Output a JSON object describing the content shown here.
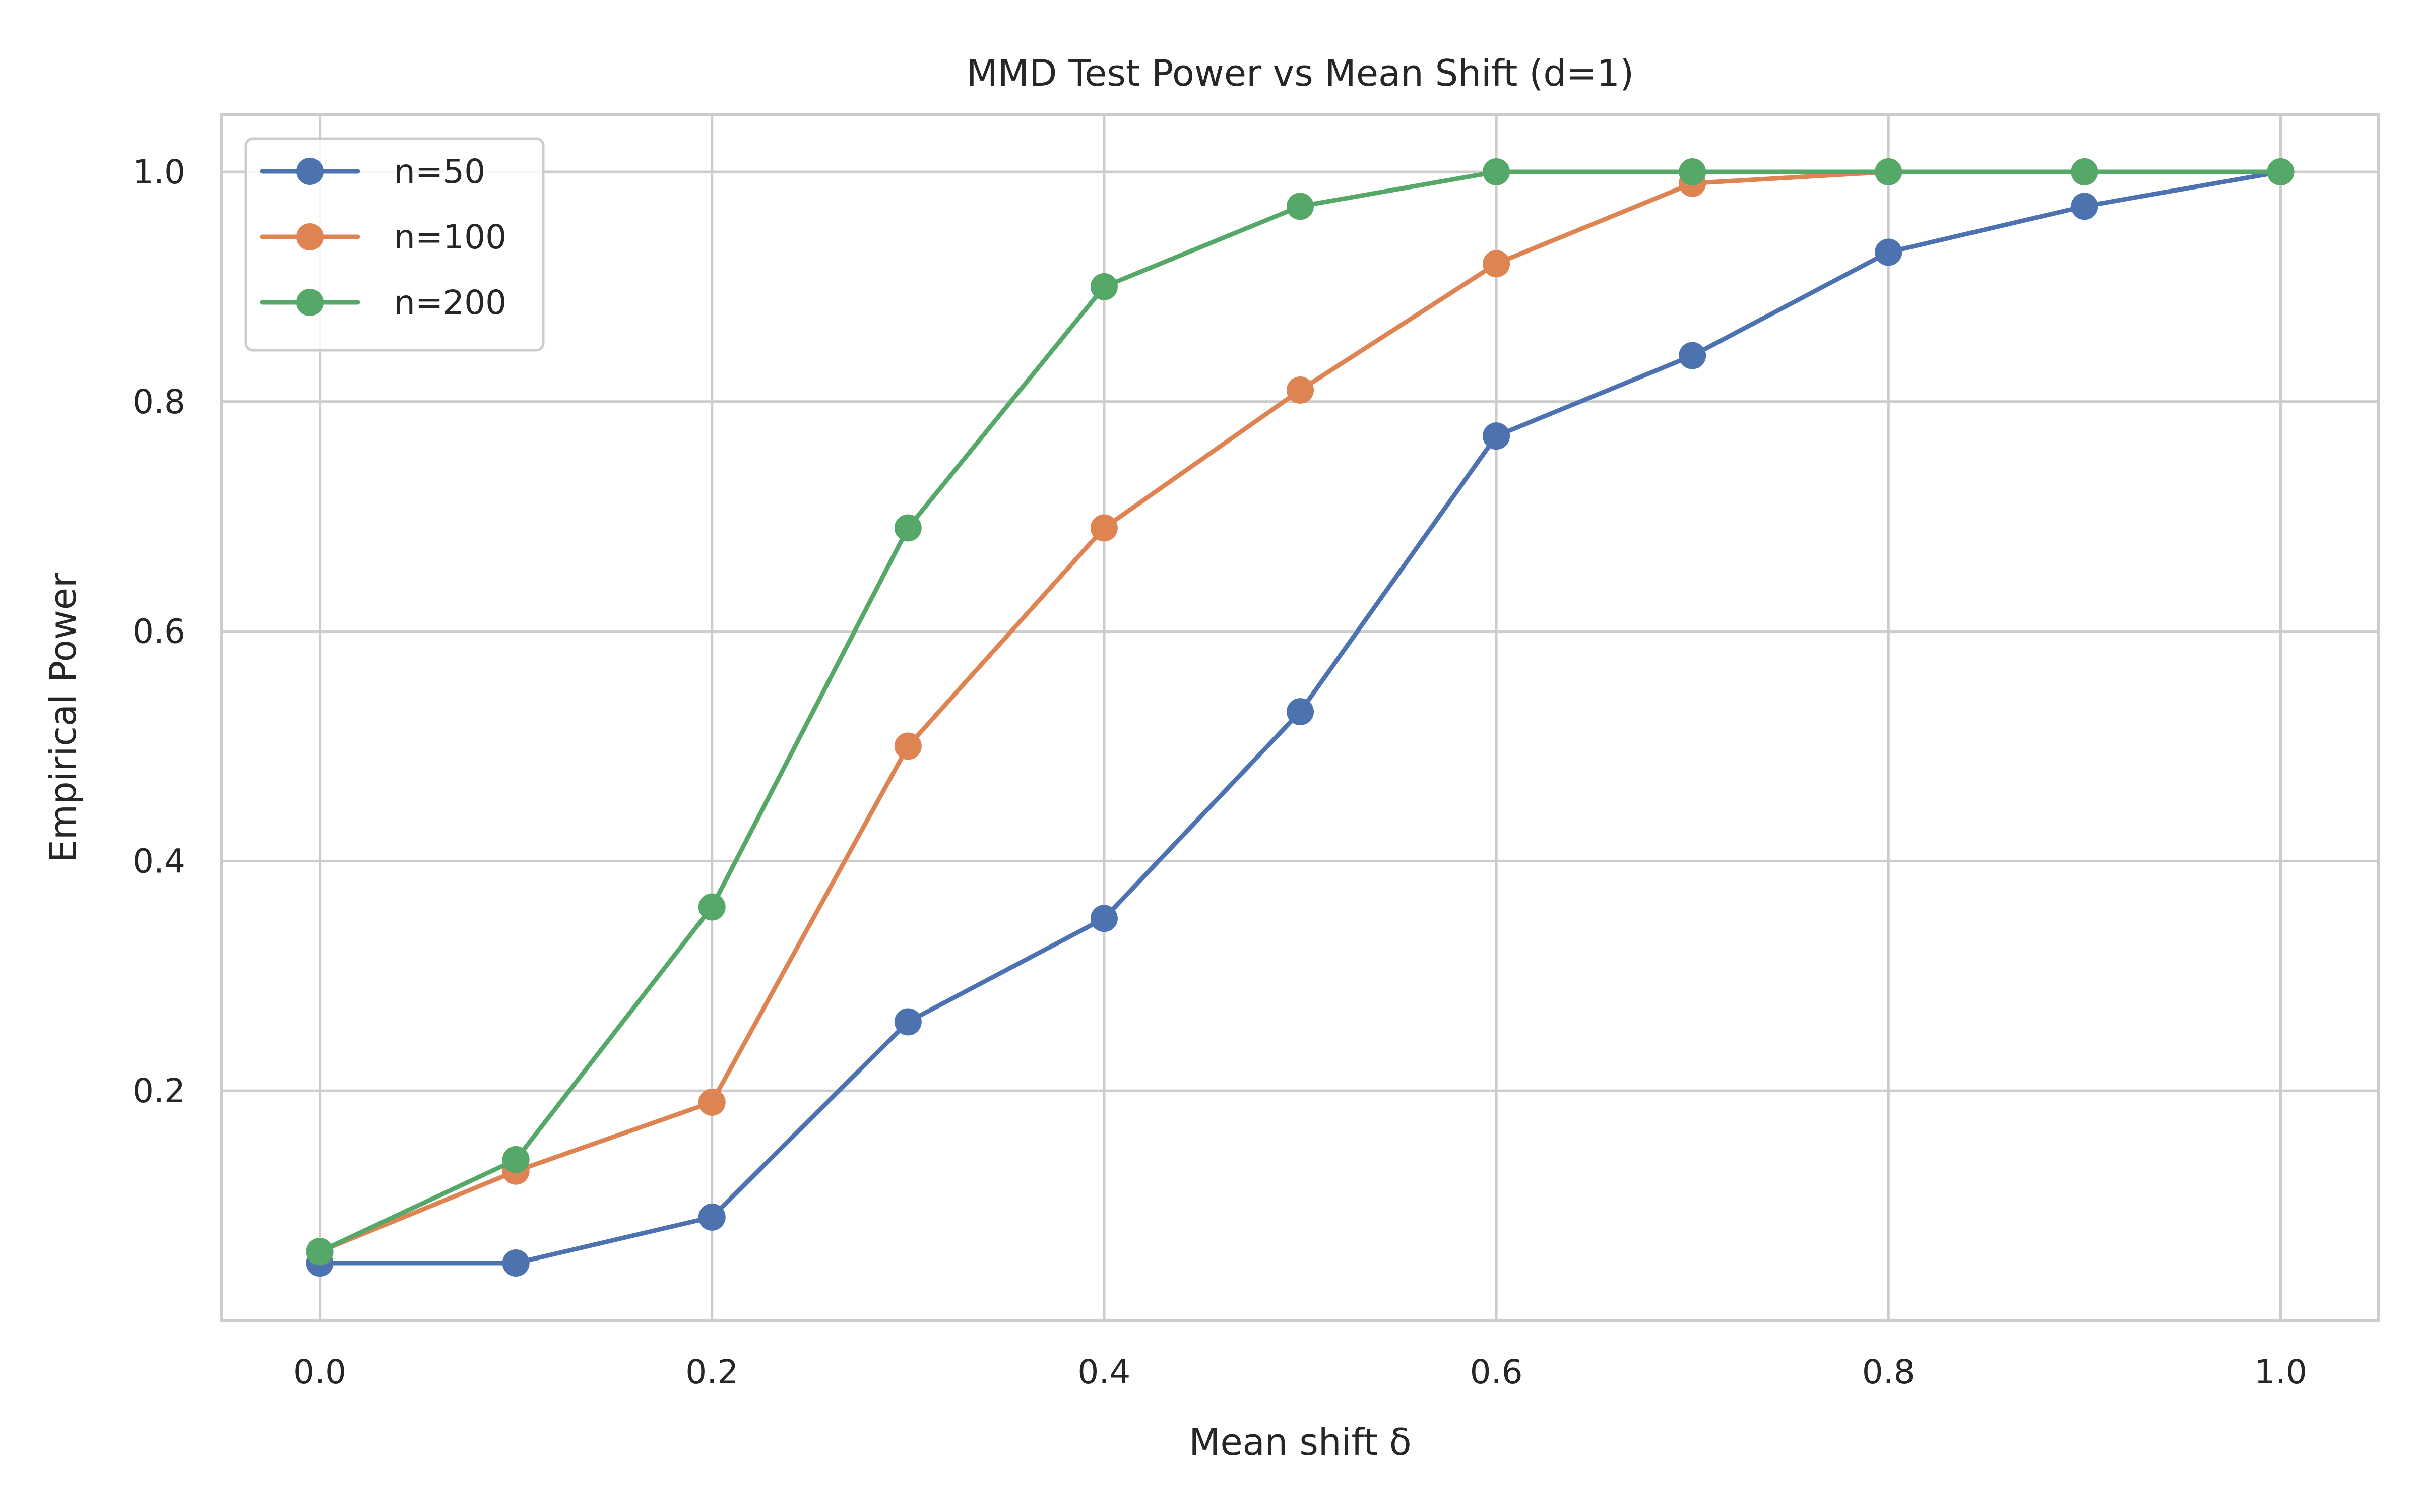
{
  "chart_data": {
    "type": "line",
    "title": "MMD Test Power vs Mean Shift (d=1)",
    "xlabel": "Mean shift δ",
    "ylabel": "Empirical Power",
    "x": [
      0.0,
      0.1,
      0.2,
      0.3,
      0.4,
      0.5,
      0.6,
      0.7,
      0.8,
      0.9,
      1.0
    ],
    "xlim": [
      -0.05,
      1.05
    ],
    "ylim": [
      0.0,
      1.05
    ],
    "xticks": [
      0.0,
      0.2,
      0.4,
      0.6,
      0.8,
      1.0
    ],
    "xtick_labels": [
      "0.0",
      "0.2",
      "0.4",
      "0.6",
      "0.8",
      "1.0"
    ],
    "yticks": [
      0.2,
      0.4,
      0.6,
      0.8,
      1.0
    ],
    "ytick_labels": [
      "0.2",
      "0.4",
      "0.6",
      "0.8",
      "1.0"
    ],
    "grid": true,
    "legend_position": "top-left",
    "series": [
      {
        "name": "n=50",
        "color": "#4c72b0",
        "values": [
          0.05,
          0.05,
          0.09,
          0.26,
          0.35,
          0.53,
          0.77,
          0.84,
          0.93,
          0.97,
          1.0
        ]
      },
      {
        "name": "n=100",
        "color": "#dd8452",
        "values": [
          0.06,
          0.13,
          0.19,
          0.5,
          0.69,
          0.81,
          0.92,
          0.99,
          1.0,
          1.0,
          1.0
        ]
      },
      {
        "name": "n=200",
        "color": "#55a868",
        "values": [
          0.06,
          0.14,
          0.36,
          0.69,
          0.9,
          0.97,
          1.0,
          1.0,
          1.0,
          1.0,
          1.0
        ]
      }
    ]
  }
}
